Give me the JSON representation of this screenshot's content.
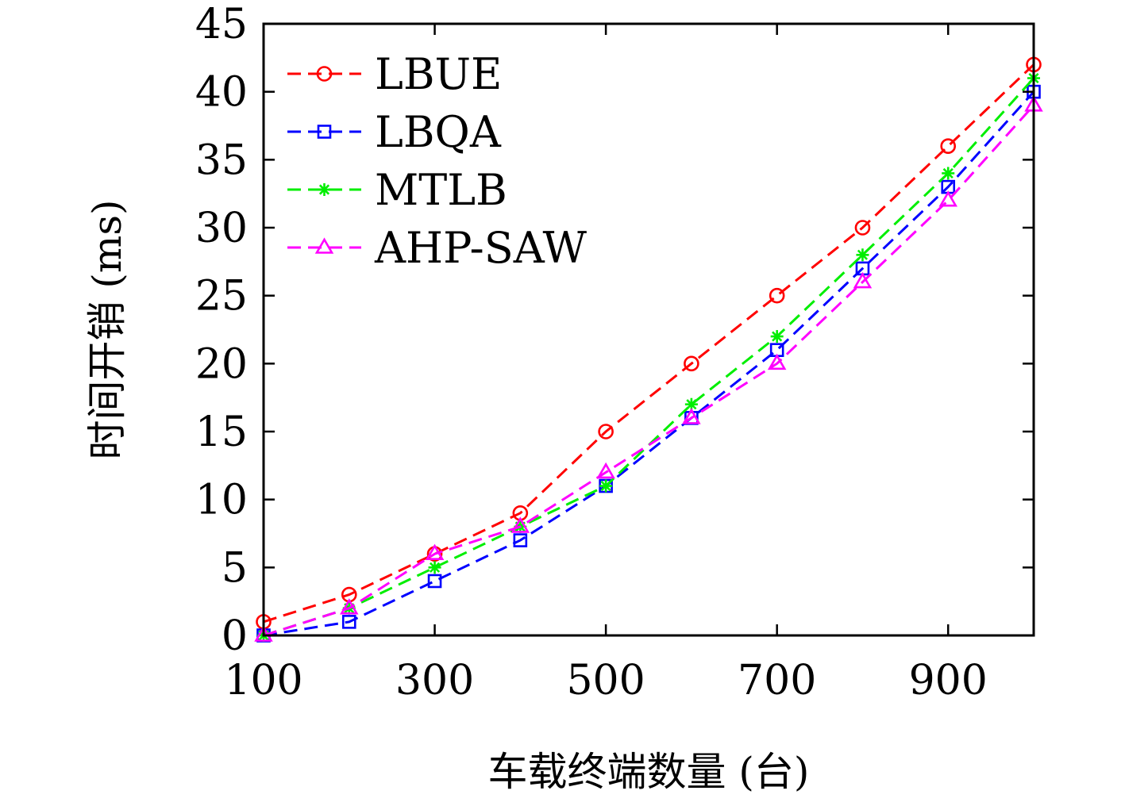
{
  "chart_data": {
    "type": "line",
    "title": "",
    "xlabel": "车载终端数量 (台)",
    "ylabel": "时间开销 (ms)",
    "x": [
      100,
      200,
      300,
      400,
      500,
      600,
      700,
      800,
      900,
      1000
    ],
    "xlim": [
      100,
      1000
    ],
    "ylim": [
      0,
      45
    ],
    "xticks": [
      100,
      300,
      500,
      700,
      900
    ],
    "xtick_labels": [
      "100",
      "300",
      "500",
      "700",
      "900"
    ],
    "yticks": [
      0,
      5,
      10,
      15,
      20,
      25,
      30,
      35,
      40,
      45
    ],
    "ytick_labels": [
      "0",
      "5",
      "10",
      "15",
      "20",
      "25",
      "30",
      "35",
      "40",
      "45"
    ],
    "grid": false,
    "legend_position": "top-left",
    "series": [
      {
        "name": "LBUE",
        "color": "#ff0000",
        "marker": "circle",
        "line_style": "dashed",
        "values": [
          1,
          3,
          6,
          9,
          15,
          20,
          25,
          30,
          36,
          42
        ]
      },
      {
        "name": "LBQA",
        "color": "#0000ff",
        "marker": "square",
        "line_style": "dashed",
        "values": [
          0,
          1,
          4,
          7,
          11,
          16,
          21,
          27,
          33,
          40
        ]
      },
      {
        "name": "MTLB",
        "color": "#00ee00",
        "marker": "asterisk",
        "line_style": "dashed",
        "values": [
          0,
          2,
          5,
          8,
          11,
          17,
          22,
          28,
          34,
          41
        ]
      },
      {
        "name": "AHP-SAW",
        "color": "#ff00ff",
        "marker": "triangle",
        "line_style": "dashed",
        "values": [
          0,
          2,
          6,
          8,
          12,
          16,
          20,
          26,
          32,
          39
        ]
      }
    ]
  }
}
